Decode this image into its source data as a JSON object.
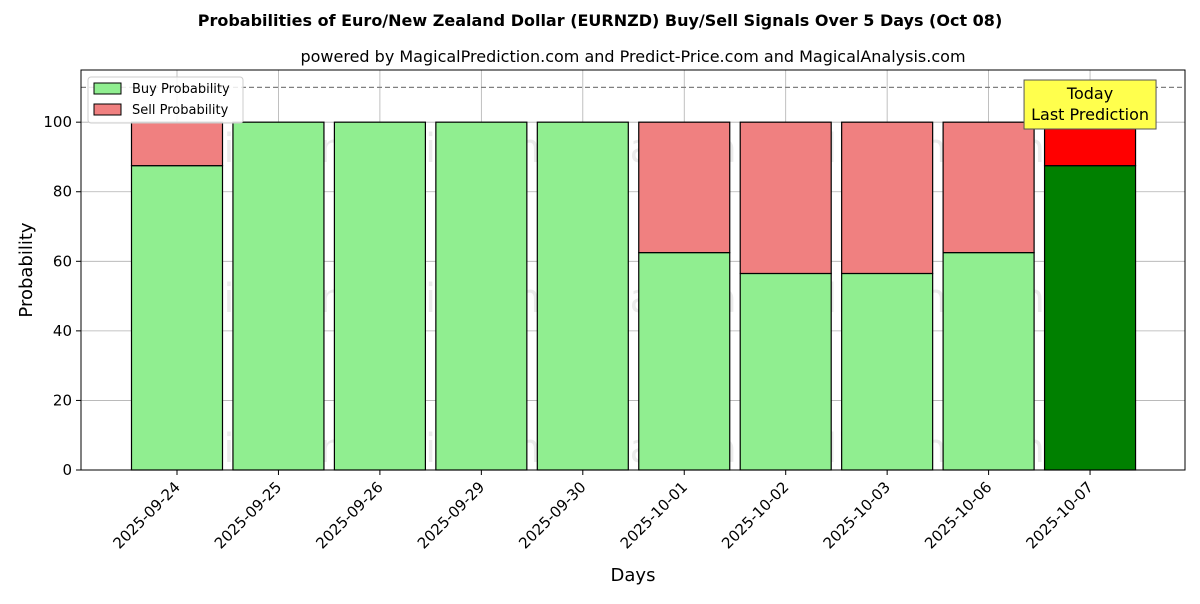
{
  "chart_data": {
    "type": "bar",
    "title": "Probabilities of Euro/New Zealand Dollar (EURNZD) Buy/Sell Signals Over 5 Days (Oct 08)",
    "subtitle": "powered by MagicalPrediction.com and Predict-Price.com and MagicalAnalysis.com",
    "xlabel": "Days",
    "ylabel": "Probability",
    "ylim": [
      0,
      115
    ],
    "yticks": [
      0,
      20,
      40,
      60,
      80,
      100
    ],
    "grid": true,
    "stacked": true,
    "legend_position": "top-left",
    "categories": [
      "2025-09-24",
      "2025-09-25",
      "2025-09-26",
      "2025-09-29",
      "2025-09-30",
      "2025-10-01",
      "2025-10-02",
      "2025-10-03",
      "2025-10-06",
      "2025-10-07"
    ],
    "series": [
      {
        "name": "Buy Probability",
        "values": [
          87.5,
          100,
          100,
          100,
          100,
          62.5,
          56.5,
          56.5,
          62.5,
          87.5
        ],
        "color": "#90ee90",
        "highlight_color": "#008000"
      },
      {
        "name": "Sell Probability",
        "values": [
          12.5,
          0,
          0,
          0,
          0,
          37.5,
          43.5,
          43.5,
          37.5,
          12.5
        ],
        "color": "#f08080",
        "highlight_color": "#ff0000"
      }
    ],
    "highlight_index": 9,
    "reference_line": {
      "value": 110,
      "style": "dashed",
      "color": "#808080"
    },
    "annotation": {
      "lines": [
        "Today",
        "Last Prediction"
      ],
      "color": "#ffff4d"
    },
    "watermarks": [
      "MagicalAnalysis.com",
      "MagicalPrediction.com"
    ]
  }
}
